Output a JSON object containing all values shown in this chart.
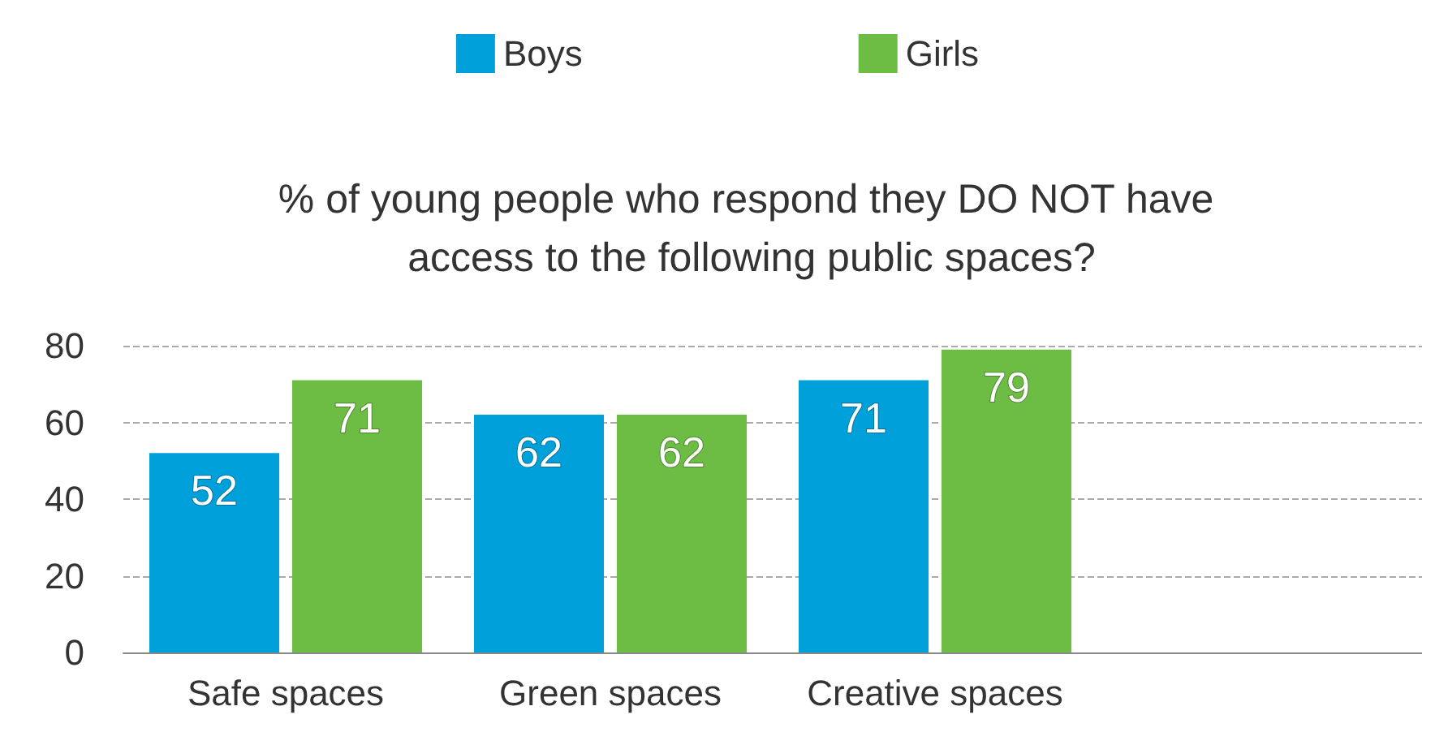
{
  "chart_data": {
    "type": "bar",
    "title": "% of young people who respond they DO NOT have access to the following public spaces?",
    "categories": [
      "Safe spaces",
      "Green spaces",
      "Creative spaces",
      null
    ],
    "series": [
      {
        "name": "Boys",
        "color": "#00a0db",
        "values": [
          52,
          62,
          71,
          null
        ]
      },
      {
        "name": "Girls",
        "color": "#6dbd45",
        "values": [
          71,
          62,
          79,
          null
        ]
      }
    ],
    "ylim": [
      0,
      80
    ],
    "yticks": [
      0,
      20,
      40,
      60,
      80
    ],
    "grid": "y",
    "legend": "top",
    "data_labels": true
  }
}
